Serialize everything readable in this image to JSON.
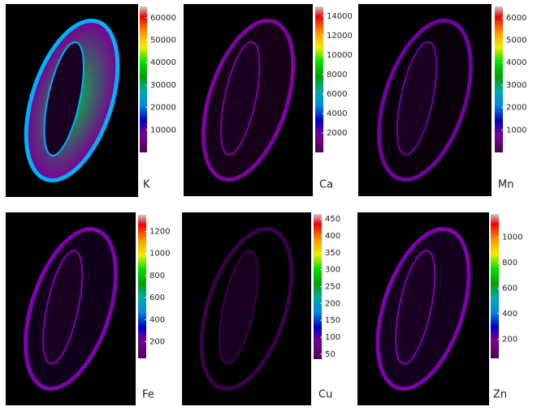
{
  "chart_data": [
    {
      "type": "heatmap",
      "label": "K",
      "clim": [
        0,
        65000
      ],
      "cticks": [
        10000,
        20000,
        30000,
        40000,
        50000,
        60000
      ]
    },
    {
      "type": "heatmap",
      "label": "Ca",
      "clim": [
        0,
        15000
      ],
      "cticks": [
        2000,
        4000,
        6000,
        8000,
        10000,
        12000,
        14000
      ]
    },
    {
      "type": "heatmap",
      "label": "Mn",
      "clim": [
        0,
        6500
      ],
      "cticks": [
        1000,
        2000,
        3000,
        4000,
        5000,
        6000
      ]
    },
    {
      "type": "heatmap",
      "label": "Fe",
      "clim": [
        50,
        1350
      ],
      "cticks": [
        200,
        400,
        600,
        800,
        1000,
        1200
      ]
    },
    {
      "type": "heatmap",
      "label": "Cu",
      "clim": [
        35,
        465
      ],
      "cticks": [
        50,
        100,
        150,
        200,
        250,
        300,
        350,
        400,
        450
      ]
    },
    {
      "type": "heatmap",
      "label": "Zn",
      "clim": [
        50,
        1180
      ],
      "cticks": [
        200,
        400,
        600,
        800,
        1000
      ]
    }
  ]
}
